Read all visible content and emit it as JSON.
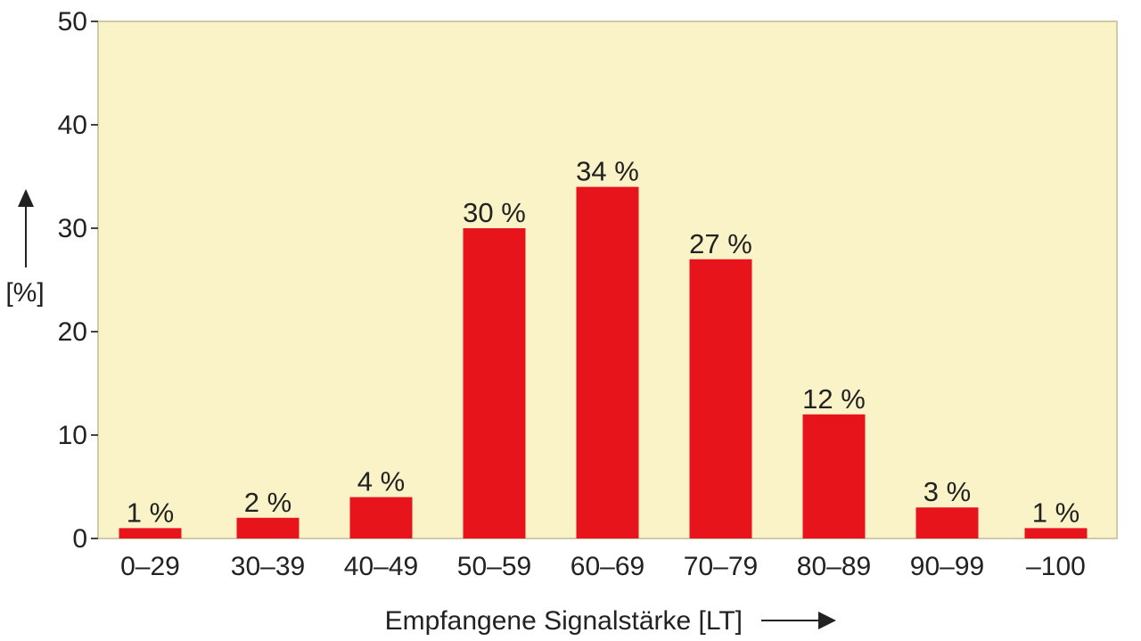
{
  "chart_data": {
    "type": "bar",
    "title": "",
    "xlabel": "Empfangene Signalstärke [LT]",
    "ylabel": "[%]",
    "ylim": [
      0,
      50
    ],
    "yticks": [
      0,
      10,
      20,
      30,
      40,
      50
    ],
    "grid": false,
    "categories": [
      "0–29",
      "30–39",
      "40–49",
      "50–59",
      "60–69",
      "70–79",
      "80–89",
      "90–99",
      "–100"
    ],
    "values": [
      1,
      2,
      4,
      30,
      34,
      27,
      12,
      3,
      1
    ],
    "data_labels": [
      "1 %",
      "2 %",
      "4 %",
      "30 %",
      "34 %",
      "27 %",
      "12 %",
      "3 %",
      "1 %"
    ],
    "colors": {
      "bar": "#e8141c",
      "plot_background": "#f9f3c7",
      "plot_border": "#cfcaa8"
    }
  }
}
